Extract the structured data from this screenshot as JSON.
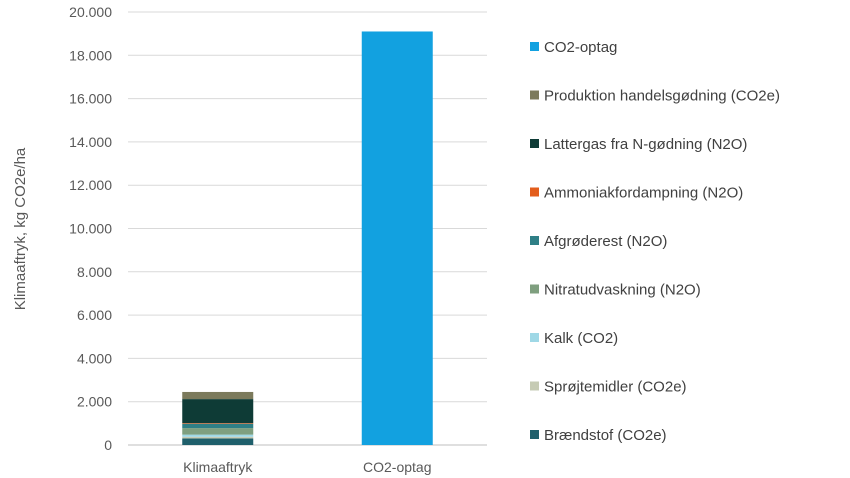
{
  "chart_data": {
    "type": "bar",
    "stacked": true,
    "categories": [
      "Klimaaftryk",
      "CO2-optag"
    ],
    "ylabel": "Klimaaftryk, kg CO2e/ha",
    "ylim": [
      0,
      20000
    ],
    "yticks": [
      0,
      2000,
      4000,
      6000,
      8000,
      10000,
      12000,
      14000,
      16000,
      18000,
      20000
    ],
    "ytick_labels": [
      "0",
      "2.000",
      "4.000",
      "6.000",
      "8.000",
      "10.000",
      "12.000",
      "14.000",
      "16.000",
      "18.000",
      "20.000"
    ],
    "grid": true,
    "legend_position": "right",
    "series": [
      {
        "name": "Brændstof (CO2e)",
        "color": "#1f5f6b",
        "values": [
          300,
          0
        ]
      },
      {
        "name": "Sprøjtemidler (CO2e)",
        "color": "#c6cbb4",
        "values": [
          80,
          0
        ]
      },
      {
        "name": "Kalk (CO2)",
        "color": "#9fd8e6",
        "values": [
          100,
          0
        ]
      },
      {
        "name": "Nitratudvaskning (N2O)",
        "color": "#7f9f7f",
        "values": [
          300,
          0
        ]
      },
      {
        "name": "Afgrøderest (N2O)",
        "color": "#2f7f86",
        "values": [
          200,
          0
        ]
      },
      {
        "name": "Ammoniakfordampning (N2O)",
        "color": "#e35d1c",
        "values": [
          30,
          0
        ]
      },
      {
        "name": "Lattergas fra N-gødning (N2O)",
        "color": "#0e3b36",
        "values": [
          1110,
          0
        ]
      },
      {
        "name": "Produktion handelsgødning (CO2e)",
        "color": "#7c7a5c",
        "values": [
          330,
          0
        ]
      },
      {
        "name": "CO2-optag",
        "color": "#12a1e0",
        "values": [
          0,
          19100
        ]
      }
    ]
  }
}
